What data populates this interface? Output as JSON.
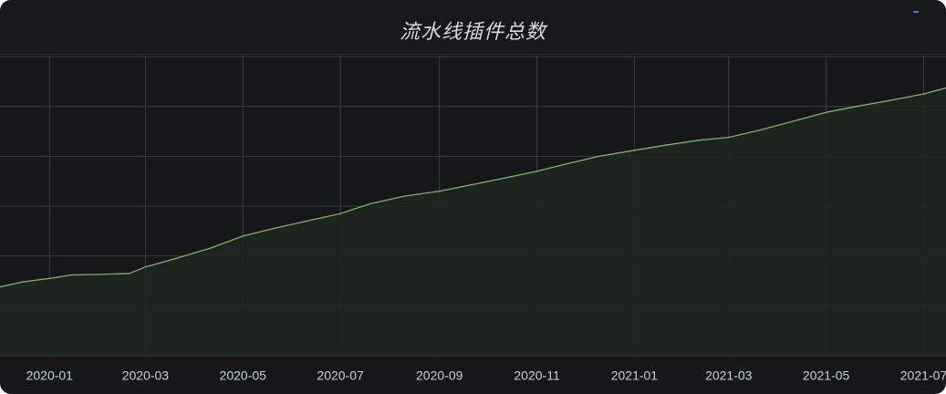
{
  "panel": {
    "title": "流水线插件总数"
  },
  "colors": {
    "background": "#161719",
    "grid": "#3a3d42",
    "series_line": "#7eb26d",
    "series_fill": "#1f2620",
    "tick_text": "#c7d0d9"
  },
  "chart_data": {
    "type": "area",
    "title": "流水线插件总数",
    "xlabel": "",
    "ylabel": "",
    "x_ticks": [
      "2020-01",
      "2020-03",
      "2020-05",
      "2020-07",
      "2020-09",
      "2020-11",
      "2021-01",
      "2021-03",
      "2021-05",
      "2021-07"
    ],
    "x_range": [
      "2019-12-01",
      "2021-07-15"
    ],
    "y_range": [
      0,
      6
    ],
    "y_tick_count": 6,
    "y_ticks_visible": false,
    "grid": true,
    "legend": "none",
    "series": [
      {
        "x": [
          "2019-12-01",
          "2019-12-15",
          "2020-01-01",
          "2020-01-15",
          "2020-02-01",
          "2020-02-20",
          "2020-03-01",
          "2020-03-20",
          "2020-04-10",
          "2020-05-01",
          "2020-05-20",
          "2020-06-10",
          "2020-07-01",
          "2020-07-20",
          "2020-08-10",
          "2020-09-01",
          "2020-09-20",
          "2020-10-10",
          "2020-11-01",
          "2020-11-20",
          "2020-12-10",
          "2021-01-01",
          "2021-01-20",
          "2021-02-10",
          "2021-03-01",
          "2021-03-20",
          "2021-04-10",
          "2021-05-01",
          "2021-05-20",
          "2021-06-10",
          "2021-07-01",
          "2021-07-15"
        ],
        "values": [
          1.38,
          1.48,
          1.55,
          1.62,
          1.63,
          1.65,
          1.78,
          1.95,
          2.15,
          2.4,
          2.55,
          2.7,
          2.85,
          3.05,
          3.2,
          3.3,
          3.42,
          3.55,
          3.7,
          3.85,
          4.0,
          4.12,
          4.22,
          4.32,
          4.38,
          4.52,
          4.7,
          4.88,
          5.0,
          5.12,
          5.25,
          5.37
        ]
      }
    ]
  }
}
